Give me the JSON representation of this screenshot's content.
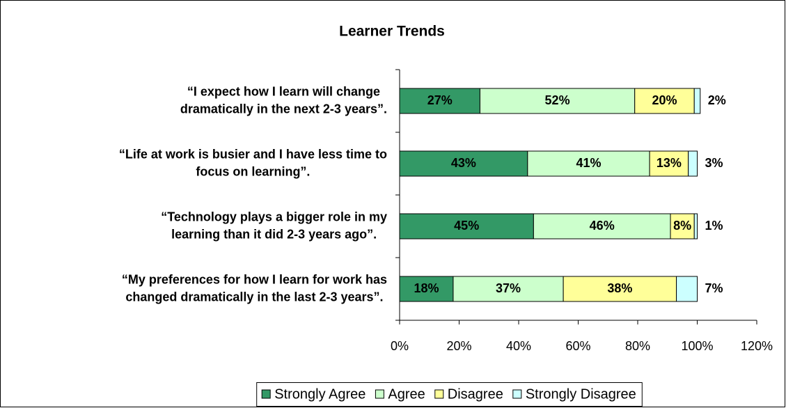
{
  "chart_data": {
    "type": "stacked_bar_horizontal",
    "title": "Learner Trends",
    "categories": [
      [
        "“I expect how I learn will change",
        "dramatically in the next 2-3 years”."
      ],
      [
        "“Life at work is busier and I have less time to",
        "focus on learning”."
      ],
      [
        "“Technology plays a bigger role in my",
        "learning than it did 2-3 years ago”."
      ],
      [
        "“My preferences for how I learn for work has",
        "changed dramatically in the last 2-3 years”."
      ]
    ],
    "series": [
      {
        "name": "Strongly Agree",
        "color": "#339966",
        "values": [
          27,
          43,
          45,
          18
        ],
        "value_labels": [
          "27%",
          "43%",
          "45%",
          "18%"
        ]
      },
      {
        "name": "Agree",
        "color": "#ccffcc",
        "values": [
          52,
          41,
          46,
          37
        ],
        "value_labels": [
          "52%",
          "41%",
          "46%",
          "37%"
        ]
      },
      {
        "name": "Disagree",
        "color": "#ffff99",
        "values": [
          20,
          13,
          8,
          38
        ],
        "value_labels": [
          "20%",
          "13%",
          "8%",
          "38%"
        ]
      },
      {
        "name": "Strongly Disagree",
        "color": "#ccffff",
        "values": [
          2,
          3,
          1,
          7
        ],
        "value_labels": [
          "2%",
          "3%",
          "1%",
          "7%"
        ]
      }
    ],
    "xlim": [
      0,
      120
    ],
    "xticks": [
      {
        "value": 0,
        "label": "0%"
      },
      {
        "value": 20,
        "label": "20%"
      },
      {
        "value": 40,
        "label": "40%"
      },
      {
        "value": 60,
        "label": "60%"
      },
      {
        "value": 80,
        "label": "80%"
      },
      {
        "value": 100,
        "label": "100%"
      },
      {
        "value": 120,
        "label": "120%"
      }
    ],
    "legend": "bottom"
  }
}
